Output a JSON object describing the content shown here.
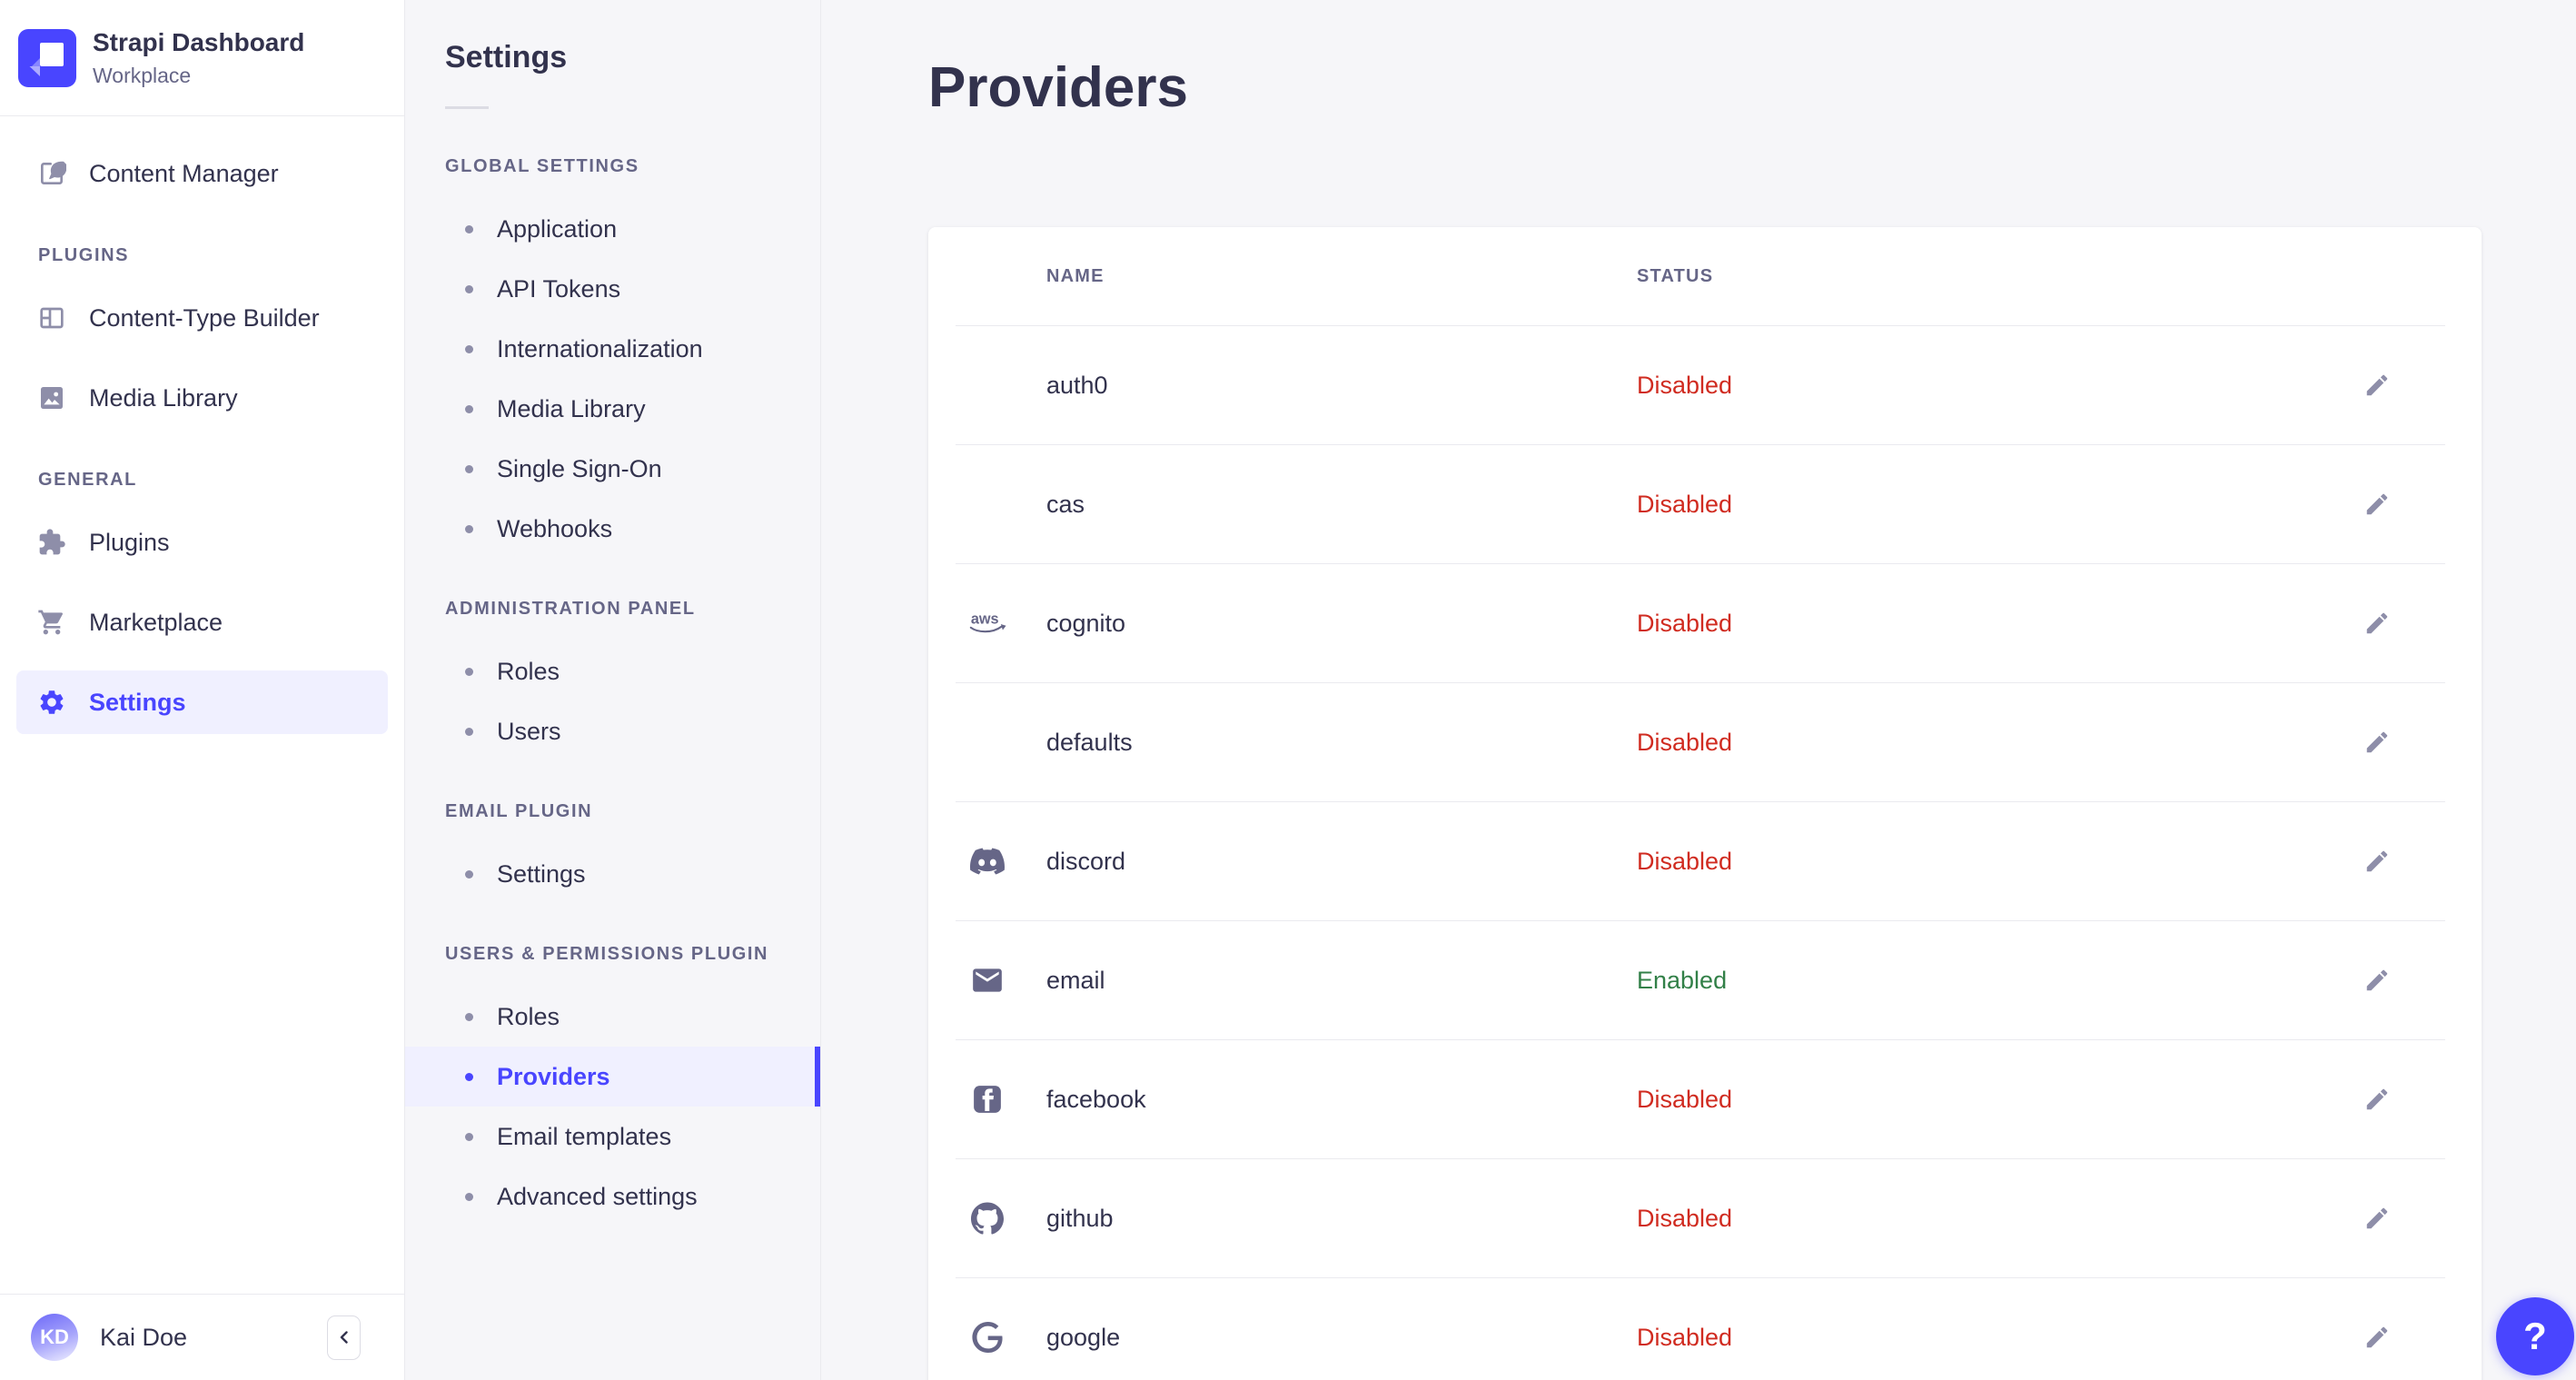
{
  "brand": {
    "title": "Strapi Dashboard",
    "subtitle": "Workplace",
    "logo_icon": "strapi-logo-icon"
  },
  "main_nav": {
    "sections": [
      {
        "label": "",
        "items": [
          {
            "label": "Content Manager",
            "icon": "content-manager-icon",
            "active": false
          }
        ]
      },
      {
        "label": "PLUGINS",
        "items": [
          {
            "label": "Content-Type Builder",
            "icon": "content-type-builder-icon",
            "active": false
          },
          {
            "label": "Media Library",
            "icon": "media-library-icon",
            "active": false
          }
        ]
      },
      {
        "label": "GENERAL",
        "items": [
          {
            "label": "Plugins",
            "icon": "plugins-icon",
            "active": false
          },
          {
            "label": "Marketplace",
            "icon": "marketplace-icon",
            "active": false
          },
          {
            "label": "Settings",
            "icon": "settings-icon",
            "active": true
          }
        ]
      }
    ]
  },
  "user": {
    "name": "Kai Doe",
    "initials": "KD"
  },
  "collapse_button": {
    "icon": "chevron-left-icon"
  },
  "settings_nav": {
    "title": "Settings",
    "sections": [
      {
        "label": "GLOBAL SETTINGS",
        "items": [
          {
            "label": "Application"
          },
          {
            "label": "API Tokens"
          },
          {
            "label": "Internationalization"
          },
          {
            "label": "Media Library"
          },
          {
            "label": "Single Sign-On"
          },
          {
            "label": "Webhooks"
          }
        ]
      },
      {
        "label": "ADMINISTRATION PANEL",
        "items": [
          {
            "label": "Roles"
          },
          {
            "label": "Users"
          }
        ]
      },
      {
        "label": "EMAIL PLUGIN",
        "items": [
          {
            "label": "Settings"
          }
        ]
      },
      {
        "label": "USERS & PERMISSIONS PLUGIN",
        "items": [
          {
            "label": "Roles"
          },
          {
            "label": "Providers",
            "active": true
          },
          {
            "label": "Email templates"
          },
          {
            "label": "Advanced settings"
          }
        ]
      }
    ]
  },
  "page": {
    "title": "Providers"
  },
  "providers_table": {
    "columns": [
      "NAME",
      "STATUS"
    ],
    "edit_icon": "edit-icon",
    "rows": [
      {
        "name": "auth0",
        "icon": "",
        "status": "Disabled"
      },
      {
        "name": "cas",
        "icon": "",
        "status": "Disabled"
      },
      {
        "name": "cognito",
        "icon": "aws-icon",
        "status": "Disabled"
      },
      {
        "name": "defaults",
        "icon": "",
        "status": "Disabled"
      },
      {
        "name": "discord",
        "icon": "discord-icon",
        "status": "Disabled"
      },
      {
        "name": "email",
        "icon": "email-icon",
        "status": "Enabled"
      },
      {
        "name": "facebook",
        "icon": "facebook-icon",
        "status": "Disabled"
      },
      {
        "name": "github",
        "icon": "github-icon",
        "status": "Disabled"
      },
      {
        "name": "google",
        "icon": "google-icon",
        "status": "Disabled"
      }
    ]
  },
  "help_button": {
    "label": "?",
    "icon": "question-icon"
  },
  "colors": {
    "accent": "#4945ff",
    "accent_bg": "#f0f0ff",
    "status_disabled": "#d02b20",
    "status_enabled": "#328048",
    "divider": "#eaeaef",
    "background": "#f6f6f9"
  }
}
